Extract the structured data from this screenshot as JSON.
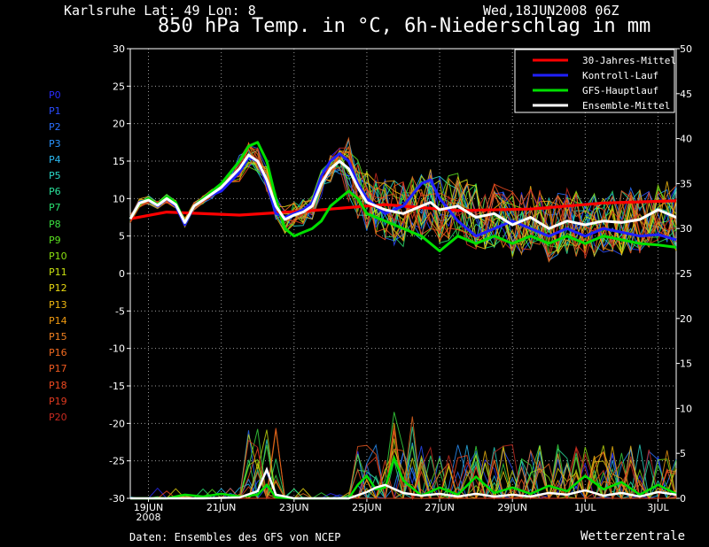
{
  "header": {
    "location": "Karlsruhe   Lat: 49 Lon: 8",
    "datetime": "Wed,18JUN2008 06Z",
    "title": "850 hPa Temp. in °C, 6h-Niederschlag in mm"
  },
  "footer": {
    "source": "Daten: Ensembles des GFS von NCEP",
    "brand": "Wetterzentrale"
  },
  "members": [
    {
      "label": "P0",
      "color": "#2a2aff"
    },
    {
      "label": "P1",
      "color": "#2a4cff"
    },
    {
      "label": "P2",
      "color": "#2a70ff"
    },
    {
      "label": "P3",
      "color": "#2a94ff"
    },
    {
      "label": "P4",
      "color": "#2ab8f0"
    },
    {
      "label": "P5",
      "color": "#2ad8c8"
    },
    {
      "label": "P6",
      "color": "#2ae09a"
    },
    {
      "label": "P7",
      "color": "#2ae070"
    },
    {
      "label": "P8",
      "color": "#3ae040"
    },
    {
      "label": "P9",
      "color": "#5ae020"
    },
    {
      "label": "P10",
      "color": "#8ae010"
    },
    {
      "label": "P11",
      "color": "#c8e010"
    },
    {
      "label": "P12",
      "color": "#e8d810"
    },
    {
      "label": "P13",
      "color": "#f0b810"
    },
    {
      "label": "P14",
      "color": "#f09a10"
    },
    {
      "label": "P15",
      "color": "#f08020"
    },
    {
      "label": "P16",
      "color": "#f06a20"
    },
    {
      "label": "P17",
      "color": "#f05a20"
    },
    {
      "label": "P18",
      "color": "#f04a20"
    },
    {
      "label": "P19",
      "color": "#e03a20"
    },
    {
      "label": "P20",
      "color": "#c82a20"
    }
  ],
  "chart_data": {
    "type": "line",
    "xlabel": "",
    "ylabel": "",
    "x_ticks": [
      "19JUN",
      "21JUN",
      "23JUN",
      "25JUN",
      "27JUN",
      "29JUN",
      "1JUL",
      "3JUL"
    ],
    "x_tick_extra": "2008",
    "ylim_left": [
      -30,
      30
    ],
    "yticks_left": [
      -30,
      -25,
      -20,
      -15,
      -10,
      -5,
      0,
      5,
      10,
      15,
      20,
      25,
      30
    ],
    "ylim_right": [
      0,
      50
    ],
    "yticks_right": [
      0,
      5,
      10,
      15,
      20,
      25,
      30,
      35,
      40,
      45,
      50
    ],
    "grid": true,
    "legend_position": "top-right",
    "legend": [
      {
        "name": "30-Jahres-Mittel",
        "color": "#ff0000"
      },
      {
        "name": "Kontroll-Lauf",
        "color": "#2020ff"
      },
      {
        "name": "GFS-Hauptlauf",
        "color": "#00e000"
      },
      {
        "name": "Ensemble-Mittel",
        "color": "#ffffff"
      }
    ],
    "series_temperature": [
      {
        "name": "30-Jahres-Mittel",
        "color": "#ff0000",
        "width": 3.2,
        "points": [
          [
            0,
            7.3
          ],
          [
            2,
            8.2
          ],
          [
            6,
            7.8
          ],
          [
            10,
            8.4
          ],
          [
            14,
            9.2
          ],
          [
            18,
            8.4
          ],
          [
            22,
            8.6
          ],
          [
            26,
            9.4
          ],
          [
            30,
            9.7
          ]
        ]
      },
      {
        "name": "Kontroll-Lauf",
        "color": "#2020ff",
        "width": 3,
        "points": [
          [
            0,
            7.3
          ],
          [
            0.5,
            9.5
          ],
          [
            1,
            9.8
          ],
          [
            1.5,
            9
          ],
          [
            2,
            10
          ],
          [
            2.5,
            9
          ],
          [
            3,
            6.5
          ],
          [
            3.5,
            9
          ],
          [
            4,
            10
          ],
          [
            5,
            11
          ],
          [
            6,
            13.5
          ],
          [
            6.5,
            15.5
          ],
          [
            7,
            15
          ],
          [
            7.5,
            12
          ],
          [
            8,
            8
          ],
          [
            8.5,
            7.5
          ],
          [
            9,
            8
          ],
          [
            9.5,
            8.5
          ],
          [
            10,
            9.5
          ],
          [
            10.5,
            13
          ],
          [
            11,
            15
          ],
          [
            11.5,
            16
          ],
          [
            12,
            15
          ],
          [
            12.5,
            12
          ],
          [
            13,
            10
          ],
          [
            14,
            8
          ],
          [
            15,
            9
          ],
          [
            16,
            12
          ],
          [
            16.5,
            12.5
          ],
          [
            17,
            10
          ],
          [
            18,
            7
          ],
          [
            19,
            5
          ],
          [
            20,
            6
          ],
          [
            21,
            7
          ],
          [
            22,
            6
          ],
          [
            23,
            5
          ],
          [
            24,
            6
          ],
          [
            25,
            5
          ],
          [
            26,
            6
          ],
          [
            27,
            5.5
          ],
          [
            28,
            5
          ],
          [
            29,
            5.2
          ],
          [
            30,
            4.5
          ]
        ]
      },
      {
        "name": "GFS-Hauptlauf",
        "color": "#00e000",
        "width": 3,
        "points": [
          [
            0,
            7.3
          ],
          [
            0.5,
            9.3
          ],
          [
            1,
            10
          ],
          [
            1.5,
            9.2
          ],
          [
            2,
            10.2
          ],
          [
            2.5,
            9.5
          ],
          [
            3,
            6.8
          ],
          [
            3.5,
            9
          ],
          [
            4,
            10
          ],
          [
            5,
            12
          ],
          [
            6,
            15
          ],
          [
            6.5,
            17
          ],
          [
            7,
            17.5
          ],
          [
            7.5,
            15
          ],
          [
            8,
            10
          ],
          [
            8.5,
            6
          ],
          [
            9,
            5
          ],
          [
            9.5,
            5.5
          ],
          [
            10,
            6
          ],
          [
            10.5,
            7
          ],
          [
            11,
            9
          ],
          [
            11.5,
            10
          ],
          [
            12,
            11
          ],
          [
            12.5,
            10
          ],
          [
            13,
            8
          ],
          [
            14,
            7
          ],
          [
            15,
            6
          ],
          [
            16,
            5
          ],
          [
            17,
            3
          ],
          [
            18,
            5
          ],
          [
            19,
            4
          ],
          [
            20,
            5
          ],
          [
            21,
            4
          ],
          [
            22,
            5
          ],
          [
            23,
            4
          ],
          [
            24,
            5
          ],
          [
            25,
            4
          ],
          [
            26,
            5
          ],
          [
            27,
            4.5
          ],
          [
            28,
            4
          ],
          [
            29,
            3.8
          ],
          [
            30,
            3.5
          ]
        ]
      },
      {
        "name": "Ensemble-Mittel",
        "color": "#ffffff",
        "width": 3,
        "points": [
          [
            0,
            7.3
          ],
          [
            0.5,
            9.4
          ],
          [
            1,
            9.8
          ],
          [
            1.5,
            9.1
          ],
          [
            2,
            10
          ],
          [
            2.5,
            9.2
          ],
          [
            3,
            6.8
          ],
          [
            3.5,
            9
          ],
          [
            4,
            9.8
          ],
          [
            5,
            11.5
          ],
          [
            6,
            14
          ],
          [
            6.5,
            15.8
          ],
          [
            7,
            15
          ],
          [
            7.5,
            12.5
          ],
          [
            8,
            9
          ],
          [
            8.5,
            7.2
          ],
          [
            9,
            7.8
          ],
          [
            9.5,
            8.2
          ],
          [
            10,
            9
          ],
          [
            10.5,
            12
          ],
          [
            11,
            14
          ],
          [
            11.5,
            15
          ],
          [
            12,
            14
          ],
          [
            12.5,
            11.5
          ],
          [
            13,
            9.5
          ],
          [
            14,
            8.5
          ],
          [
            15,
            8
          ],
          [
            16,
            9
          ],
          [
            16.5,
            9.5
          ],
          [
            17,
            8.5
          ],
          [
            18,
            9
          ],
          [
            19,
            7.5
          ],
          [
            20,
            8
          ],
          [
            21,
            6.5
          ],
          [
            22,
            7.5
          ],
          [
            23,
            6
          ],
          [
            24,
            7
          ],
          [
            25,
            6.5
          ],
          [
            26,
            7
          ],
          [
            27,
            6.8
          ],
          [
            28,
            7.2
          ],
          [
            29,
            8.5
          ],
          [
            30,
            7.5
          ]
        ]
      }
    ],
    "precip_main": [
      {
        "name": "GFS-Hauptlauf",
        "color": "#00e000",
        "points": [
          [
            0,
            0
          ],
          [
            2,
            0
          ],
          [
            3,
            0.4
          ],
          [
            4,
            0.2
          ],
          [
            5,
            0.5
          ],
          [
            6,
            0.2
          ],
          [
            7,
            0.4
          ],
          [
            7.5,
            1.5
          ],
          [
            8,
            0.1
          ],
          [
            9,
            0
          ],
          [
            10,
            0
          ],
          [
            11,
            0
          ],
          [
            12,
            0
          ],
          [
            12.5,
            1.5
          ],
          [
            13,
            2.5
          ],
          [
            13.5,
            1
          ],
          [
            14,
            1.2
          ],
          [
            14.5,
            4.5
          ],
          [
            15,
            2
          ],
          [
            16,
            0.3
          ],
          [
            17,
            1.2
          ],
          [
            18,
            0.4
          ],
          [
            19,
            2.4
          ],
          [
            20,
            0.6
          ],
          [
            21,
            1.2
          ],
          [
            22,
            0.5
          ],
          [
            23,
            1.4
          ],
          [
            24,
            0.8
          ],
          [
            25,
            2.5
          ],
          [
            26,
            1
          ],
          [
            27,
            1.8
          ],
          [
            28,
            0.4
          ],
          [
            29,
            1.5
          ],
          [
            30,
            0.5
          ]
        ]
      },
      {
        "name": "Ensemble-Mittel",
        "color": "#ffffff",
        "points": [
          [
            0,
            0
          ],
          [
            4,
            0
          ],
          [
            6,
            0.1
          ],
          [
            7,
            0.8
          ],
          [
            7.5,
            3.2
          ],
          [
            8,
            0.4
          ],
          [
            9,
            0
          ],
          [
            12,
            0
          ],
          [
            13,
            0.7
          ],
          [
            13.5,
            1.2
          ],
          [
            14,
            1.5
          ],
          [
            15,
            0.6
          ],
          [
            16,
            0.3
          ],
          [
            17,
            0.5
          ],
          [
            18,
            0.2
          ],
          [
            19,
            0.5
          ],
          [
            20,
            0.2
          ],
          [
            21,
            0.4
          ],
          [
            22,
            0.2
          ],
          [
            23,
            0.6
          ],
          [
            24,
            0.4
          ],
          [
            25,
            0.9
          ],
          [
            26,
            0.3
          ],
          [
            27,
            0.6
          ],
          [
            28,
            0.2
          ],
          [
            29,
            0.7
          ],
          [
            30,
            0.4
          ]
        ]
      }
    ],
    "x_domain": [
      0,
      30
    ]
  }
}
